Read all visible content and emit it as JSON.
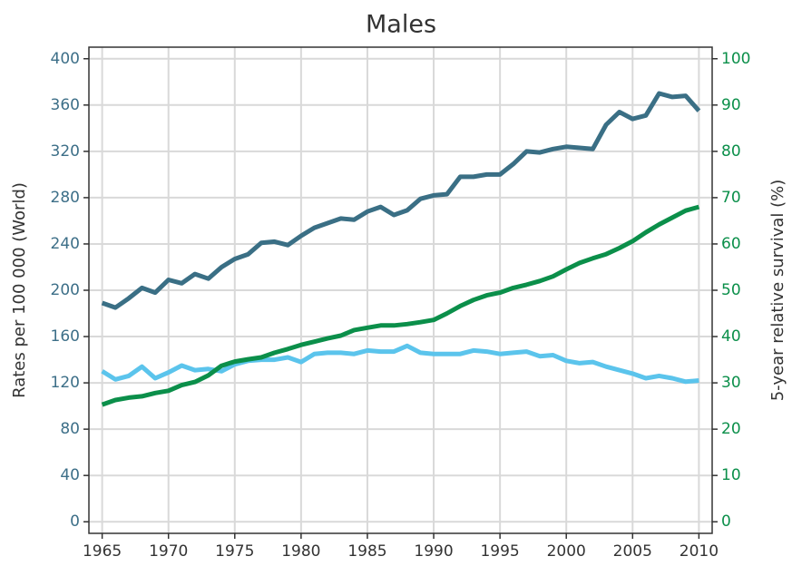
{
  "chart_data": {
    "type": "line",
    "title": "Males",
    "ylabel": "Rates per 100 000 (World)",
    "y2label": "5-year relative survival (%)",
    "x": [
      1965,
      1966,
      1967,
      1968,
      1969,
      1970,
      1971,
      1972,
      1973,
      1974,
      1975,
      1976,
      1977,
      1978,
      1979,
      1980,
      1981,
      1982,
      1983,
      1984,
      1985,
      1986,
      1987,
      1988,
      1989,
      1990,
      1991,
      1992,
      1993,
      1994,
      1995,
      1996,
      1997,
      1998,
      1999,
      2000,
      2001,
      2002,
      2003,
      2004,
      2005,
      2006,
      2007,
      2008,
      2009,
      2010
    ],
    "xlim": [
      1964,
      2011
    ],
    "xticks": [
      1965,
      1970,
      1975,
      1980,
      1985,
      1990,
      1995,
      2000,
      2005,
      2010
    ],
    "ylim": [
      -10,
      410
    ],
    "yticks": [
      0,
      40,
      80,
      120,
      160,
      200,
      240,
      280,
      320,
      360,
      400
    ],
    "y2lim": [
      -2.5,
      102.5
    ],
    "y2ticks": [
      0,
      10,
      20,
      30,
      40,
      50,
      60,
      70,
      80,
      90,
      100
    ],
    "grid": true,
    "ytick_color": "#3d6f88",
    "y2tick_color": "#0b8f4a",
    "series": [
      {
        "color": "#3a6f85",
        "axis": "y",
        "values": [
          189,
          185,
          193,
          202,
          198,
          209,
          206,
          214,
          210,
          220,
          227,
          231,
          241,
          242,
          239,
          247,
          254,
          258,
          262,
          261,
          268,
          272,
          265,
          269,
          279,
          282,
          283,
          298,
          298,
          300,
          300,
          309,
          320,
          319,
          322,
          324,
          323,
          322,
          343,
          354,
          348,
          351,
          370,
          367,
          368,
          355
        ]
      },
      {
        "color": "#5bc4ec",
        "axis": "y",
        "values": [
          130,
          123,
          126,
          134,
          124,
          129,
          135,
          131,
          132,
          130,
          136,
          139,
          140,
          140,
          142,
          138,
          145,
          146,
          146,
          145,
          148,
          147,
          147,
          152,
          146,
          145,
          145,
          145,
          148,
          147,
          145,
          146,
          147,
          143,
          144,
          139,
          137,
          138,
          134,
          131,
          128,
          124,
          126,
          124,
          121,
          122
        ]
      },
      {
        "color": "#0b8f4a",
        "axis": "y2",
        "values": [
          25.3,
          26.3,
          26.8,
          27.1,
          27.8,
          28.3,
          29.5,
          30.2,
          31.6,
          33.7,
          34.6,
          35.1,
          35.5,
          36.5,
          37.3,
          38.2,
          38.9,
          39.6,
          40.2,
          41.4,
          41.9,
          42.4,
          42.4,
          42.7,
          43.1,
          43.6,
          45.0,
          46.6,
          47.9,
          48.9,
          49.5,
          50.5,
          51.2,
          52.0,
          53.0,
          54.5,
          55.9,
          56.9,
          57.8,
          59.1,
          60.6,
          62.5,
          64.2,
          65.7,
          67.2,
          68.0
        ]
      }
    ]
  }
}
